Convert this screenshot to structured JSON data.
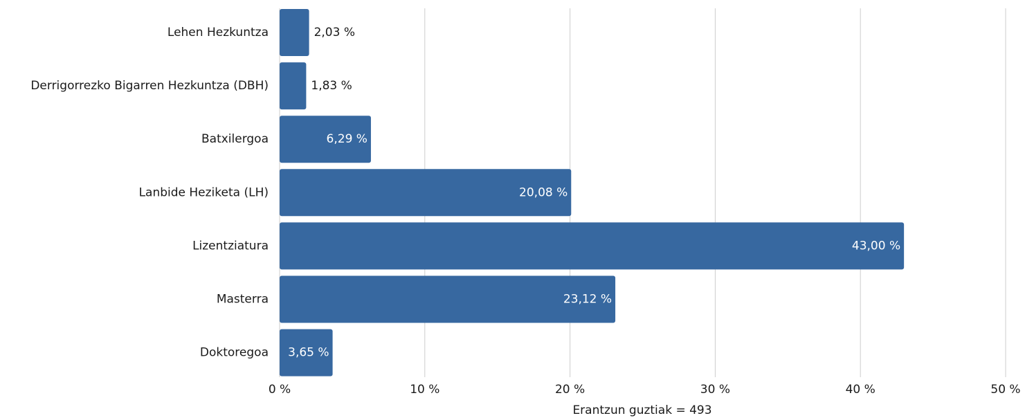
{
  "chart_data": {
    "type": "bar",
    "orientation": "horizontal",
    "categories": [
      "Lehen Hezkuntza",
      "Derrigorrezko Bigarren Hezkuntza (DBH)",
      "Batxilergoa",
      "Lanbide Heziketa (LH)",
      "Lizentziatura",
      "Masterra",
      "Doktoregoa"
    ],
    "values": [
      2.03,
      1.83,
      6.29,
      20.08,
      43.0,
      23.12,
      3.65
    ],
    "value_labels": [
      "2,03 %",
      "1,83 %",
      "6,29 %",
      "20,08 %",
      "43,00 %",
      "23,12 %",
      "3,65 %"
    ],
    "xlim": [
      0,
      50
    ],
    "x_ticks": [
      0,
      10,
      20,
      30,
      40,
      50
    ],
    "x_tick_labels": [
      "0 %",
      "10 %",
      "20 %",
      "30 %",
      "40 %",
      "50 %"
    ],
    "xlabel": "Erantzun guztiak = 493",
    "grid": "vertical",
    "bar_color": "#3768a0",
    "grid_color": "#cccccc"
  }
}
